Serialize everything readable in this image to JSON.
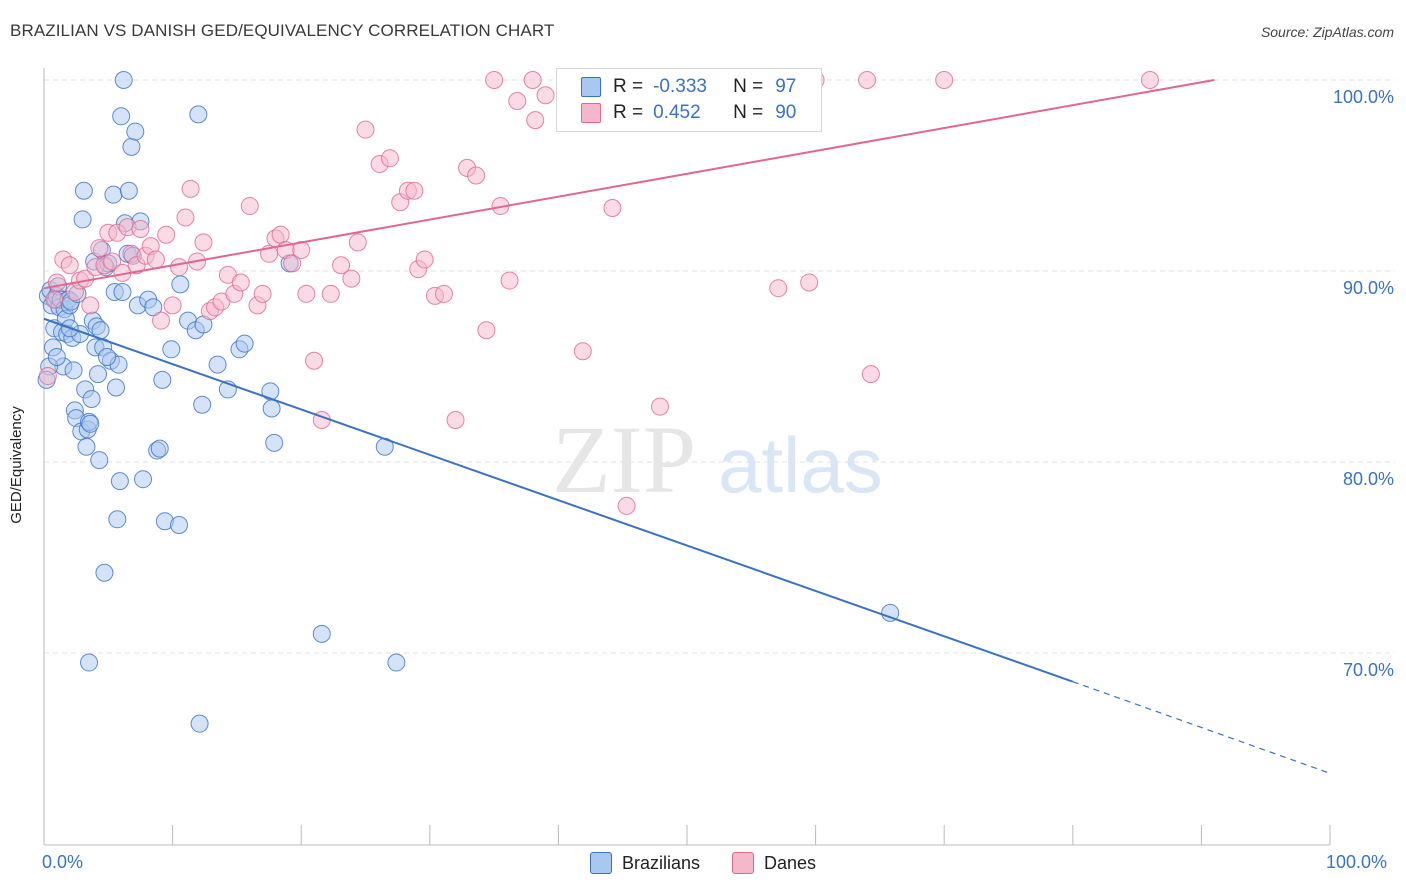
{
  "title": "BRAZILIAN VS DANISH GED/EQUIVALENCY CORRELATION CHART",
  "source": "Source: ZipAtlas.com",
  "watermark": {
    "zip": "ZIP",
    "atlas": "atlas"
  },
  "colors": {
    "blue": "#3a72c4",
    "blue_fill": "#a9c8ef",
    "pink": "#e0688f",
    "pink_fill": "#f5b8cb"
  },
  "legend": {
    "r_label": "R =",
    "n_label": "N =",
    "rows": [
      {
        "r": "-0.333",
        "n": "97"
      },
      {
        "r": "0.452",
        "n": "90"
      }
    ]
  },
  "chart_data": {
    "type": "scatter",
    "title": "BRAZILIAN VS DANISH GED/EQUIVALENCY CORRELATION CHART",
    "xlabel": "",
    "ylabel": "GED/Equivalency",
    "xlim": [
      0,
      100
    ],
    "ylim": [
      60,
      101
    ],
    "x_tick_labels": [
      "0.0%",
      "100.0%"
    ],
    "y_tick_labels": [
      "100.0%",
      "90.0%",
      "80.0%",
      "70.0%"
    ],
    "y_ticks": [
      100,
      90,
      80,
      70
    ],
    "grid": true,
    "legend_position": "bottom",
    "series": [
      {
        "name": "Brazilians",
        "color": "#3a72c4",
        "trend": {
          "x0": 0,
          "y0": 87.5,
          "x1": 80,
          "y1": 68.5,
          "dashed_to_x": 100,
          "dashed_to_y": 63.7
        },
        "points": [
          [
            0.3,
            88.7
          ],
          [
            0.5,
            89.0
          ],
          [
            0.6,
            88.2
          ],
          [
            0.7,
            86.0
          ],
          [
            0.8,
            87.0
          ],
          [
            0.9,
            88.5
          ],
          [
            1.0,
            88.7
          ],
          [
            1.1,
            89.2
          ],
          [
            1.2,
            88.1
          ],
          [
            1.3,
            88.5
          ],
          [
            1.4,
            86.8
          ],
          [
            1.5,
            85.0
          ],
          [
            1.6,
            88.0
          ],
          [
            1.7,
            87.5
          ],
          [
            1.8,
            86.7
          ],
          [
            1.9,
            88.5
          ],
          [
            2.0,
            88.2
          ],
          [
            2.1,
            88.4
          ],
          [
            2.2,
            86.5
          ],
          [
            2.3,
            84.8
          ],
          [
            2.4,
            82.7
          ],
          [
            2.5,
            82.3
          ],
          [
            2.6,
            88.8
          ],
          [
            2.8,
            86.7
          ],
          [
            2.9,
            81.6
          ],
          [
            3.0,
            92.7
          ],
          [
            3.1,
            94.2
          ],
          [
            3.2,
            83.8
          ],
          [
            3.3,
            80.8
          ],
          [
            3.4,
            81.7
          ],
          [
            3.5,
            82.1
          ],
          [
            3.7,
            83.3
          ],
          [
            3.8,
            87.4
          ],
          [
            3.9,
            90.5
          ],
          [
            4.0,
            86.0
          ],
          [
            4.1,
            87.1
          ],
          [
            4.2,
            84.6
          ],
          [
            4.3,
            80.1
          ],
          [
            4.4,
            86.9
          ],
          [
            4.5,
            91.1
          ],
          [
            4.6,
            86.0
          ],
          [
            4.8,
            90.2
          ],
          [
            5.0,
            90.4
          ],
          [
            5.2,
            85.3
          ],
          [
            5.4,
            94.0
          ],
          [
            5.5,
            88.9
          ],
          [
            5.6,
            83.9
          ],
          [
            5.7,
            77.0
          ],
          [
            5.8,
            85.1
          ],
          [
            6.0,
            98.1
          ],
          [
            6.1,
            88.9
          ],
          [
            6.3,
            92.5
          ],
          [
            6.5,
            90.9
          ],
          [
            6.6,
            94.2
          ],
          [
            6.8,
            96.5
          ],
          [
            6.9,
            90.8
          ],
          [
            7.1,
            97.3
          ],
          [
            7.3,
            88.2
          ],
          [
            7.5,
            92.6
          ],
          [
            7.7,
            79.1
          ],
          [
            8.1,
            88.5
          ],
          [
            8.5,
            88.1
          ],
          [
            8.8,
            80.6
          ],
          [
            9.0,
            80.7
          ],
          [
            9.2,
            84.3
          ],
          [
            9.4,
            76.9
          ],
          [
            9.9,
            85.9
          ],
          [
            10.5,
            76.7
          ],
          [
            10.6,
            89.3
          ],
          [
            11.2,
            87.4
          ],
          [
            11.8,
            86.9
          ],
          [
            12.0,
            98.2
          ],
          [
            12.3,
            83.0
          ],
          [
            12.4,
            87.2
          ],
          [
            13.5,
            85.1
          ],
          [
            14.3,
            83.8
          ],
          [
            15.2,
            85.9
          ],
          [
            15.6,
            86.2
          ],
          [
            17.6,
            83.7
          ],
          [
            17.7,
            82.8
          ],
          [
            17.9,
            81.0
          ],
          [
            19.1,
            90.4
          ],
          [
            21.6,
            71.0
          ],
          [
            26.5,
            80.8
          ],
          [
            27.4,
            69.5
          ],
          [
            6.2,
            100.0
          ],
          [
            3.5,
            69.5
          ],
          [
            4.7,
            74.2
          ],
          [
            5.9,
            79.0
          ],
          [
            12.1,
            66.3
          ],
          [
            65.8,
            72.1
          ],
          [
            0.4,
            85.0
          ],
          [
            0.2,
            84.3
          ],
          [
            1.0,
            85.5
          ],
          [
            2.0,
            87.0
          ],
          [
            3.6,
            82.0
          ],
          [
            4.9,
            85.5
          ]
        ]
      },
      {
        "name": "Danes",
        "color": "#e0688f",
        "trend": {
          "x0": 0,
          "y0": 89.1,
          "x1": 91,
          "y1": 100.0
        },
        "points": [
          [
            0.3,
            84.5
          ],
          [
            0.8,
            88.5
          ],
          [
            1.0,
            89.4
          ],
          [
            1.5,
            90.6
          ],
          [
            2.0,
            90.3
          ],
          [
            2.4,
            88.9
          ],
          [
            2.8,
            89.5
          ],
          [
            3.2,
            89.6
          ],
          [
            3.6,
            88.2
          ],
          [
            4.0,
            90.2
          ],
          [
            4.3,
            91.2
          ],
          [
            4.7,
            90.3
          ],
          [
            5.0,
            92.0
          ],
          [
            5.3,
            90.5
          ],
          [
            5.7,
            92.0
          ],
          [
            6.1,
            89.9
          ],
          [
            6.5,
            92.3
          ],
          [
            6.8,
            90.9
          ],
          [
            7.2,
            90.3
          ],
          [
            7.5,
            92.2
          ],
          [
            7.9,
            90.8
          ],
          [
            8.3,
            91.3
          ],
          [
            8.7,
            90.6
          ],
          [
            9.1,
            87.4
          ],
          [
            9.5,
            91.9
          ],
          [
            10.0,
            88.2
          ],
          [
            10.5,
            90.2
          ],
          [
            11.0,
            92.8
          ],
          [
            11.4,
            94.3
          ],
          [
            11.9,
            90.5
          ],
          [
            12.4,
            91.5
          ],
          [
            12.9,
            87.9
          ],
          [
            13.3,
            88.1
          ],
          [
            13.8,
            88.4
          ],
          [
            14.3,
            89.8
          ],
          [
            14.8,
            88.8
          ],
          [
            15.3,
            89.4
          ],
          [
            16.0,
            93.4
          ],
          [
            16.6,
            88.2
          ],
          [
            17.0,
            88.8
          ],
          [
            17.5,
            90.9
          ],
          [
            18.0,
            91.7
          ],
          [
            18.4,
            91.9
          ],
          [
            18.8,
            91.1
          ],
          [
            19.3,
            90.4
          ],
          [
            20.0,
            91.1
          ],
          [
            20.4,
            88.8
          ],
          [
            21.0,
            85.3
          ],
          [
            21.6,
            82.2
          ],
          [
            22.3,
            88.8
          ],
          [
            23.1,
            90.3
          ],
          [
            23.9,
            89.6
          ],
          [
            24.4,
            91.5
          ],
          [
            25.0,
            97.4
          ],
          [
            26.1,
            95.6
          ],
          [
            26.9,
            95.9
          ],
          [
            27.7,
            93.6
          ],
          [
            28.3,
            94.2
          ],
          [
            28.8,
            94.2
          ],
          [
            29.1,
            90.1
          ],
          [
            29.6,
            90.6
          ],
          [
            30.4,
            88.7
          ],
          [
            31.1,
            88.8
          ],
          [
            32.0,
            82.2
          ],
          [
            32.9,
            95.4
          ],
          [
            33.6,
            95.0
          ],
          [
            34.4,
            86.9
          ],
          [
            35.5,
            93.4
          ],
          [
            36.2,
            89.5
          ],
          [
            36.8,
            98.9
          ],
          [
            38.2,
            97.9
          ],
          [
            39.0,
            99.2
          ],
          [
            40.6,
            99.2
          ],
          [
            41.9,
            85.8
          ],
          [
            44.2,
            93.3
          ],
          [
            45.3,
            77.7
          ],
          [
            47.9,
            82.9
          ],
          [
            57.1,
            89.1
          ],
          [
            59.5,
            89.4
          ],
          [
            64.3,
            84.6
          ],
          [
            35.0,
            100.0
          ],
          [
            38.0,
            100.0
          ],
          [
            42.0,
            100.0
          ],
          [
            46.0,
            100.0
          ],
          [
            49.0,
            100.0
          ],
          [
            53.0,
            100.0
          ],
          [
            60.0,
            100.0
          ],
          [
            64.0,
            100.0
          ],
          [
            70.0,
            100.0
          ],
          [
            86.0,
            100.0
          ]
        ]
      }
    ]
  }
}
